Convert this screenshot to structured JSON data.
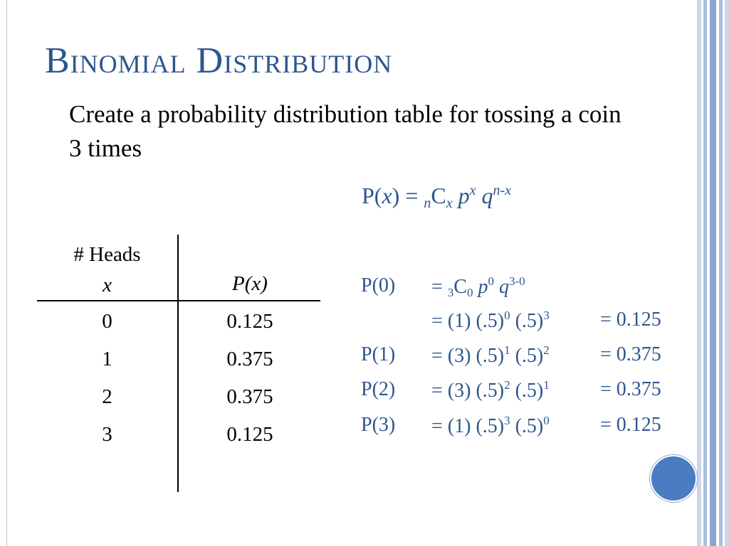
{
  "slide": {
    "title": "Binomial Distribution",
    "subtitle": "Create a probability distribution table for tossing a coin 3 times"
  },
  "formula": {
    "lhs": "P(",
    "x": "x",
    "eq": ") = ",
    "n_sub": "n",
    "C": "C",
    "x_sub": "x",
    "p": "p",
    "p_exp": "x",
    "q": "q",
    "q_exp": "n-x"
  },
  "table": {
    "header_heads": "# Heads",
    "header_x": "x",
    "header_px": "P(x)",
    "rows": [
      {
        "x": "0",
        "p": "0.125"
      },
      {
        "x": "1",
        "p": "0.375"
      },
      {
        "x": "2",
        "p": "0.375"
      },
      {
        "x": "3",
        "p": "0.125"
      }
    ]
  },
  "calculations": {
    "p0_label": "P(0)",
    "p0_line1": {
      "eq": "= ",
      "n": "3",
      "C": "C",
      "k": "0",
      "p": "p",
      "pe": "0",
      "q": "q",
      "qe": "3-0"
    },
    "p0_line2": {
      "text": "= (1) (.5)",
      "e1": "0",
      "mid": " (.5)",
      "e2": "3",
      "result": "= 0.125"
    },
    "p1": {
      "label": "P(1)",
      "text": "= (3) (.5)",
      "e1": "1",
      "mid": " (.5)",
      "e2": "2",
      "result": "= 0.375"
    },
    "p2": {
      "label": "P(2)",
      "text": "= (3) (.5)",
      "e1": "2",
      "mid": " (.5)",
      "e2": "1",
      "result": "= 0.375"
    },
    "p3": {
      "label": "P(3)",
      "text": "= (1) (.5)",
      "e1": "3",
      "mid": " (.5)",
      "e2": "0",
      "result": "= 0.125"
    }
  },
  "colors": {
    "accent": "#2e568d",
    "circle": "#4a7cc1",
    "stripes": [
      "#c9d6ea",
      "#9fb7da",
      "#7f9fcc"
    ]
  }
}
